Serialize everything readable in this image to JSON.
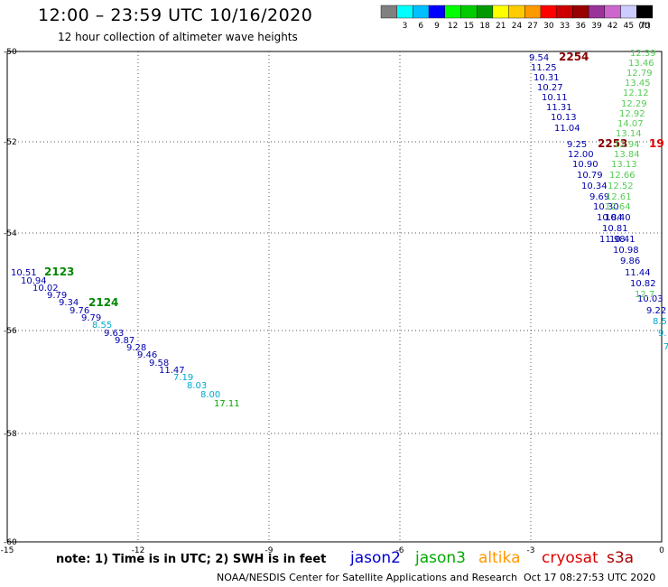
{
  "header": {
    "title": "12:00 – 23:59 UTC 10/16/2020",
    "subtitle": "12 hour collection of altimeter wave heights"
  },
  "legend": {
    "swatches": [
      {
        "color": "#808080",
        "label": ""
      },
      {
        "color": "#00ffff",
        "label": "3"
      },
      {
        "color": "#00c0ff",
        "label": "6"
      },
      {
        "color": "#0000ff",
        "label": "9"
      },
      {
        "color": "#00ff00",
        "label": "12"
      },
      {
        "color": "#00cc00",
        "label": "15"
      },
      {
        "color": "#009900",
        "label": "18"
      },
      {
        "color": "#ffff00",
        "label": "21"
      },
      {
        "color": "#ffcc00",
        "label": "24"
      },
      {
        "color": "#ff9900",
        "label": "27"
      },
      {
        "color": "#ff0000",
        "label": "30"
      },
      {
        "color": "#cc0000",
        "label": "33"
      },
      {
        "color": "#990000",
        "label": "36"
      },
      {
        "color": "#993399",
        "label": "39"
      },
      {
        "color": "#cc66cc",
        "label": "42"
      },
      {
        "color": "#ccccff",
        "label": "45"
      },
      {
        "color": "#000000",
        "label": "70"
      }
    ],
    "unit": "(ft)"
  },
  "axes": {
    "lat_labels": [
      "-50",
      "-52",
      "-54",
      "-56",
      "-58",
      "-60"
    ],
    "lon_labels": [
      "-15",
      "-12",
      "-9",
      "-6",
      "-3",
      "0"
    ]
  },
  "tracks": {
    "track_labels": [
      {
        "text": "2123",
        "color": "#008800"
      },
      {
        "text": "2124",
        "color": "#008800"
      },
      {
        "text": "2254",
        "color": "#880000"
      },
      {
        "text": "2253",
        "color": "#880000"
      },
      {
        "text": "19",
        "color": "#dd0000"
      }
    ],
    "left_track": [
      {
        "text": "10.51",
        "color": "#0000aa"
      },
      {
        "text": "10.94",
        "color": "#0000aa"
      },
      {
        "text": "10.02",
        "color": "#0000aa"
      },
      {
        "text": "9.79",
        "color": "#0000aa"
      },
      {
        "text": "9.34",
        "color": "#0000aa"
      },
      {
        "text": "9.76",
        "color": "#0000aa"
      },
      {
        "text": "9.79",
        "color": "#0000aa"
      },
      {
        "text": "8.55",
        "color": "#00aacc"
      },
      {
        "text": "9.63",
        "color": "#0000aa"
      },
      {
        "text": "9.87",
        "color": "#0000aa"
      },
      {
        "text": "9.28",
        "color": "#0000aa"
      },
      {
        "text": "9.46",
        "color": "#0000aa"
      },
      {
        "text": "9.58",
        "color": "#0000aa"
      },
      {
        "text": "11.47",
        "color": "#0000aa"
      },
      {
        "text": "7.19",
        "color": "#00aacc"
      },
      {
        "text": "8.03",
        "color": "#00aacc"
      },
      {
        "text": "8.00",
        "color": "#00aacc"
      },
      {
        "text": "17.11",
        "color": "#00aa00"
      }
    ],
    "right_blue_upper": [
      "9.54",
      "11.25",
      "10.31",
      "10.27",
      "10.11",
      "11.31",
      "10.13",
      "11.04"
    ],
    "right_blue_lower": [
      "9.25",
      "12.00",
      "10.90",
      "10.79",
      "10.34",
      "9.69",
      "10.30",
      "10.84",
      "10.40",
      "10.81",
      "11.98",
      "10.41",
      "10.98",
      "9.86",
      "11.44",
      "10.82",
      "10.03",
      "9.22",
      "8.5",
      "9.",
      "7"
    ],
    "right_green": [
      "12.39",
      "13.46",
      "12.79",
      "13.45",
      "12.12",
      "12.29",
      "12.92",
      "14.07",
      "13.14",
      "12.94",
      "13.84",
      "13.13",
      "12.66",
      "12.52",
      "12.61",
      "12.64",
      "12.7"
    ]
  },
  "satellites": [
    {
      "name": "jason2",
      "color": "#0000cc"
    },
    {
      "name": "jason3",
      "color": "#00aa00"
    },
    {
      "name": "altika",
      "color": "#ff9900"
    },
    {
      "name": "cryosat",
      "color": "#dd0000"
    },
    {
      "name": "s3a",
      "color": "#aa0000"
    }
  ],
  "note": "note: 1) Time is in UTC; 2) SWH is in feet",
  "footer": {
    "credit": "NOAA/NESDIS Center for Satellite Applications and Research",
    "timestamp": "Oct 17 08:27:53 UTC 2020"
  }
}
